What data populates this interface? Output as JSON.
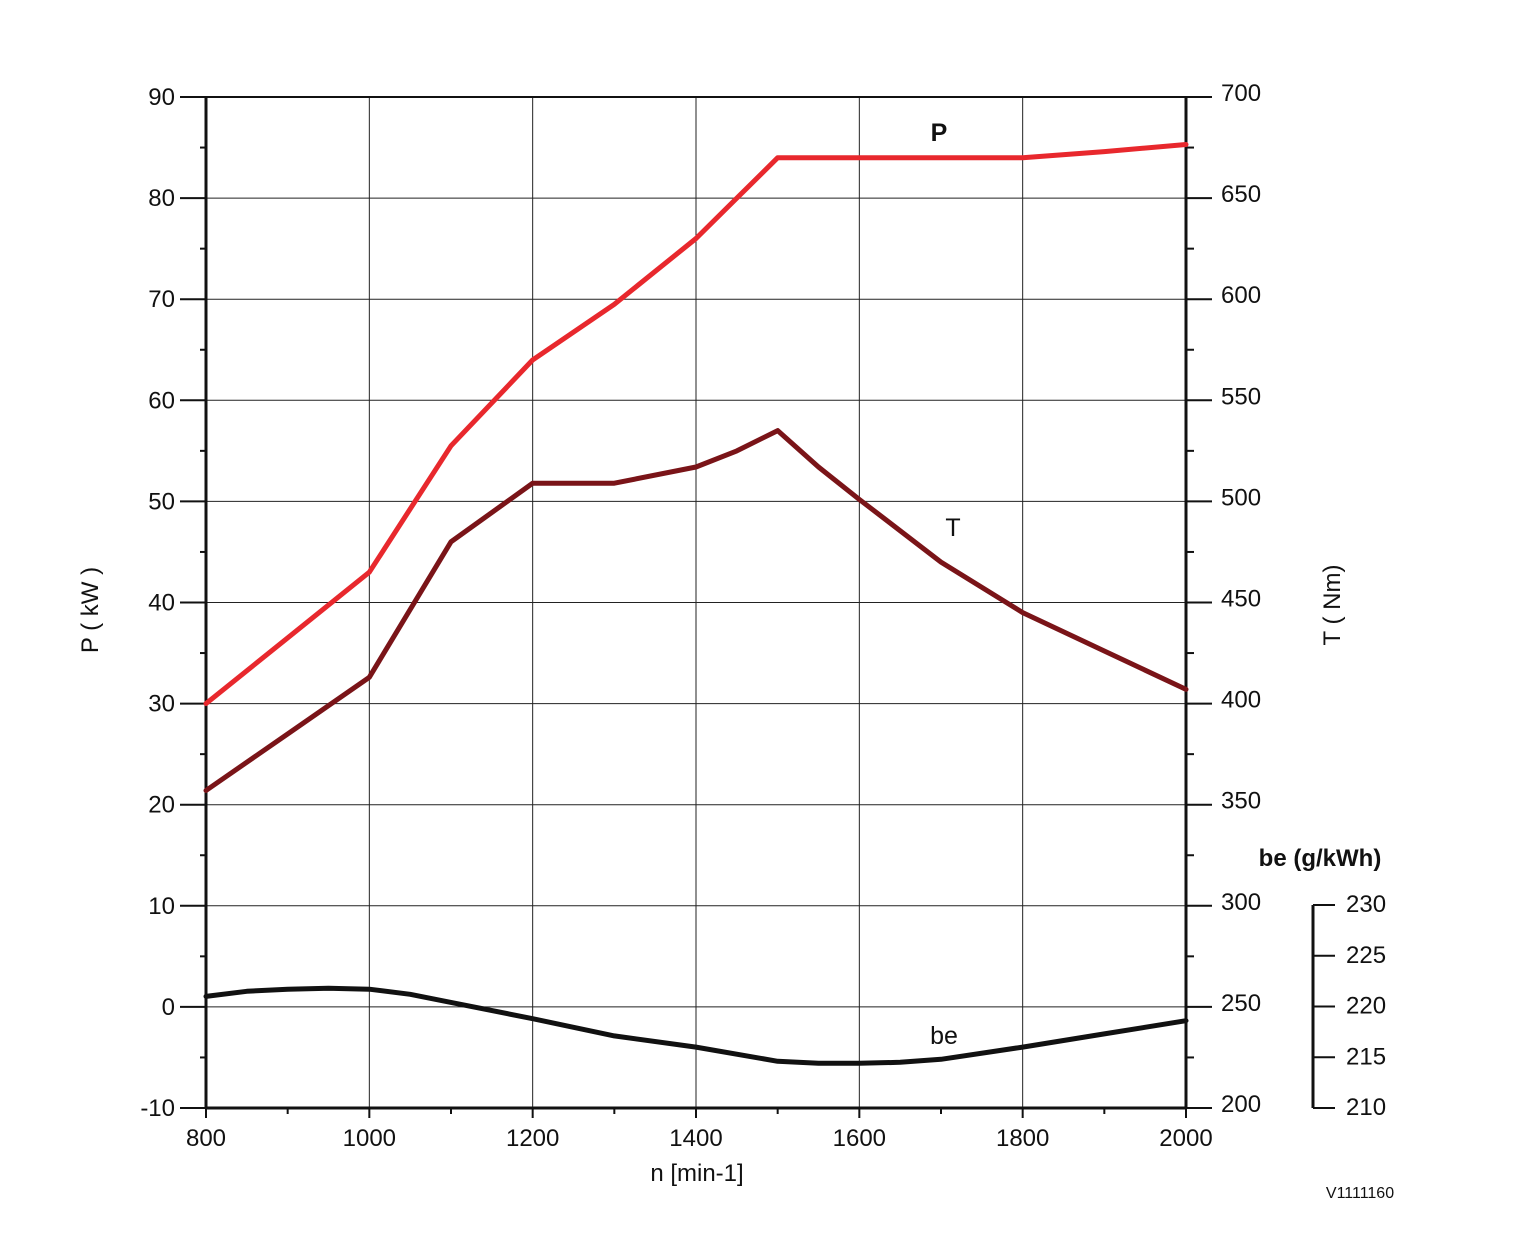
{
  "chart_data": {
    "type": "line",
    "title": "",
    "xlabel": "n [min-1]",
    "ylabel_left": "P ( kW )",
    "ylabel_right": "T ( Nm)",
    "ylabel_be": "be (g/kWh)",
    "xlim": [
      800,
      2000
    ],
    "ylim_left": [
      -10,
      90
    ],
    "ylim_right": [
      200,
      700
    ],
    "ylim_be": [
      210,
      230
    ],
    "x_ticks": [
      800,
      1000,
      1200,
      1400,
      1600,
      1800,
      2000
    ],
    "y_left_ticks": [
      -10,
      0,
      10,
      20,
      30,
      40,
      50,
      60,
      70,
      80,
      90
    ],
    "y_right_ticks": [
      200,
      250,
      300,
      350,
      400,
      450,
      500,
      550,
      600,
      650,
      700
    ],
    "y_be_ticks": [
      210,
      215,
      220,
      225,
      230
    ],
    "grid": true,
    "series": [
      {
        "name": "P",
        "axis": "left",
        "color": "#e8282d",
        "x": [
          800,
          1000,
          1100,
          1200,
          1300,
          1400,
          1450,
          1500,
          1600,
          1700,
          1800,
          1900,
          2000
        ],
        "y": [
          30,
          43,
          55.5,
          64,
          69.5,
          76,
          80,
          84,
          84,
          84,
          84,
          84.6,
          85.3
        ]
      },
      {
        "name": "T",
        "axis": "right",
        "color": "#7a1418",
        "x": [
          800,
          900,
          1000,
          1100,
          1200,
          1300,
          1400,
          1450,
          1500,
          1550,
          1600,
          1700,
          1800,
          1900,
          2000
        ],
        "y": [
          357,
          385,
          413,
          480,
          509,
          509,
          517,
          525,
          535,
          517,
          501,
          470,
          445,
          426,
          407
        ]
      },
      {
        "name": "be",
        "axis": "be",
        "color": "#111111",
        "x": [
          800,
          850,
          900,
          950,
          1000,
          1050,
          1100,
          1200,
          1300,
          1400,
          1500,
          1550,
          1600,
          1650,
          1700,
          1800,
          1900,
          2000
        ],
        "y": [
          221,
          221.5,
          221.7,
          221.8,
          221.7,
          221.2,
          220.4,
          218.8,
          217.1,
          216,
          214.6,
          214.4,
          214.4,
          214.5,
          214.8,
          216,
          217.3,
          218.6
        ]
      }
    ]
  },
  "watermark": "V1111160"
}
